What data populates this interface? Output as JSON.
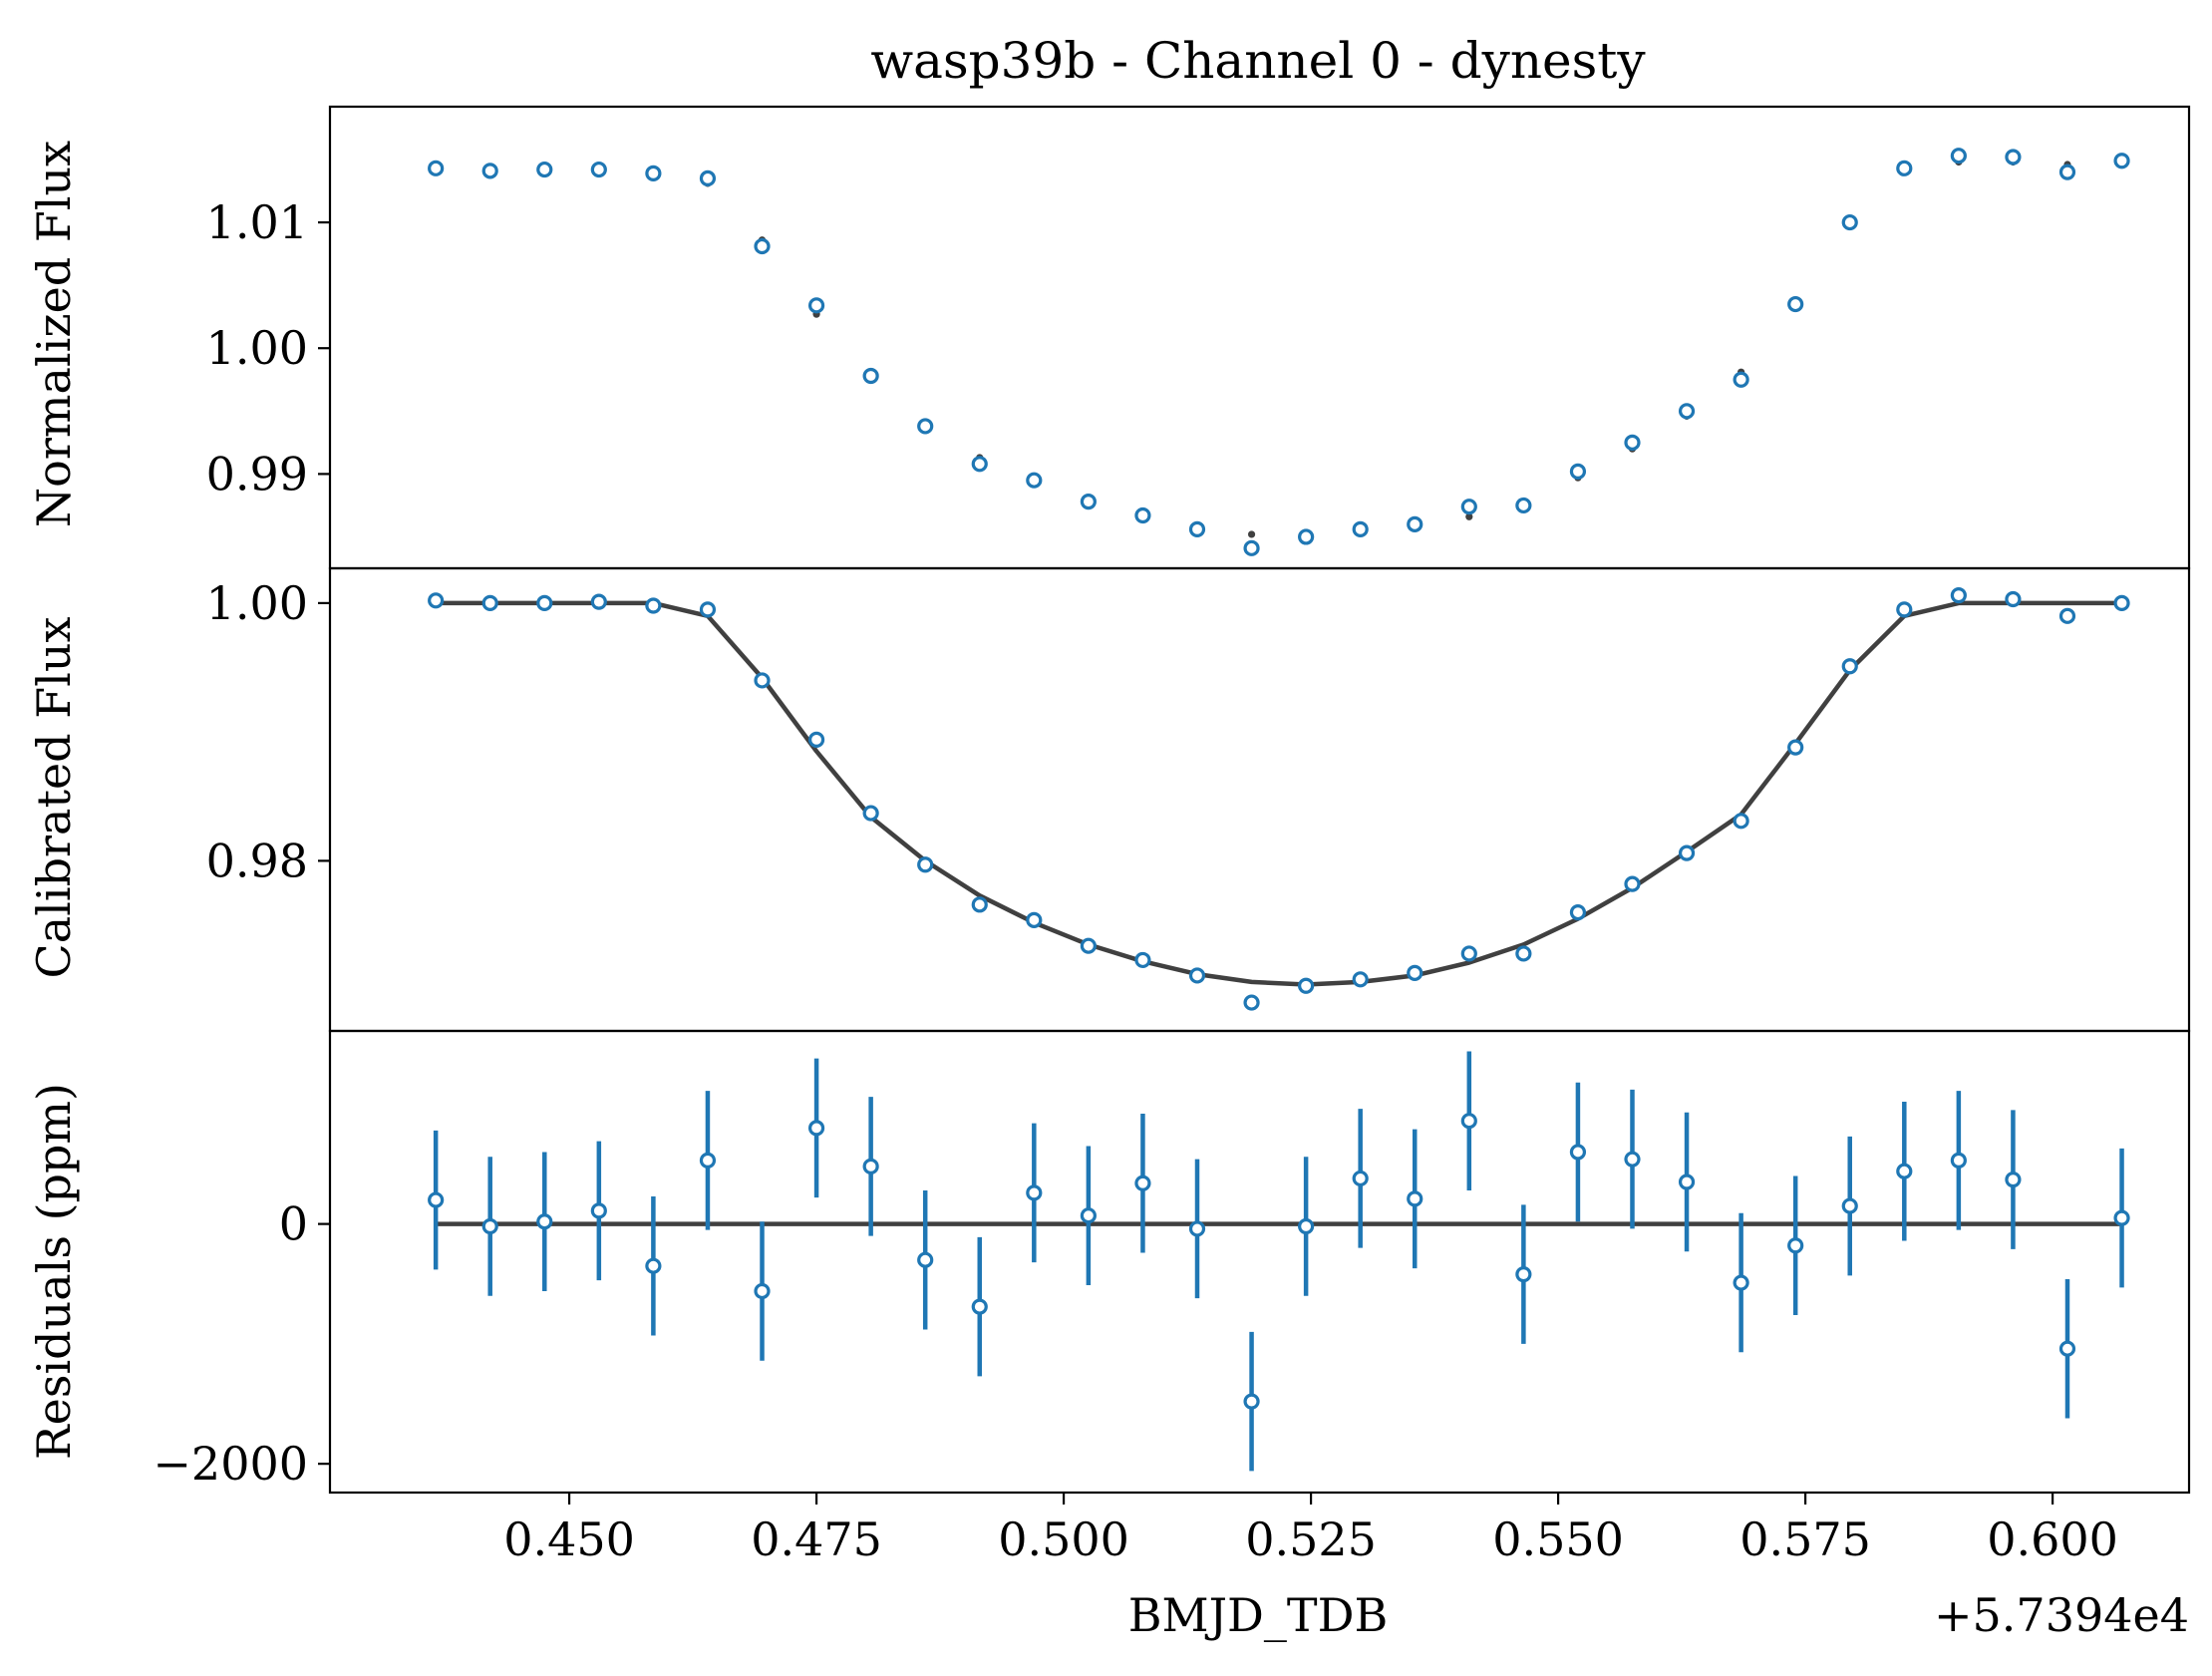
{
  "chart_data": {
    "title": "wasp39b - Channel 0 - dynesty",
    "xlabel": "BMJD_TDB",
    "x_offset_label": "+5.7394e4",
    "xlim": [
      0.4258,
      0.6138
    ],
    "x_ticks": [
      0.45,
      0.475,
      0.5,
      0.525,
      0.55,
      0.575,
      0.6
    ],
    "x_tick_labels": [
      "0.450",
      "0.475",
      "0.500",
      "0.525",
      "0.550",
      "0.575",
      "0.600"
    ],
    "colors": {
      "data": "#1f77b4",
      "model": "#404040"
    },
    "x": [
      0.4365,
      0.442,
      0.4475,
      0.453,
      0.4585,
      0.464,
      0.4695,
      0.475,
      0.4805,
      0.486,
      0.4915,
      0.497,
      0.5025,
      0.508,
      0.5135,
      0.519,
      0.5245,
      0.53,
      0.5355,
      0.541,
      0.5465,
      0.552,
      0.5575,
      0.563,
      0.5685,
      0.574,
      0.5795,
      0.585,
      0.5905,
      0.596,
      0.6015,
      0.607
    ],
    "panels": [
      {
        "type": "scatter",
        "ylabel": "Normalized Flux",
        "ylim": [
          0.9825,
          1.0192
        ],
        "y_ticks": [
          0.99,
          1.0,
          1.01
        ],
        "y_tick_labels": [
          "0.99",
          "1.00",
          "1.01"
        ],
        "series": [
          {
            "role": "data",
            "marker": "open-circle",
            "values": [
              1.0143,
              1.0141,
              1.0142,
              1.0142,
              1.0139,
              1.0135,
              1.0081,
              1.0034,
              0.9978,
              0.9938,
              0.9908,
              0.9895,
              0.9878,
              0.9867,
              0.9856,
              0.9841,
              0.985,
              0.9856,
              0.986,
              0.9874,
              0.9875,
              0.9902,
              0.9925,
              0.995,
              0.9975,
              1.0035,
              1.01,
              1.0143,
              1.0153,
              1.0152,
              1.014,
              1.0149
            ]
          },
          {
            "role": "model",
            "marker": "dot",
            "values": [
              1.0142,
              1.0141,
              1.0141,
              1.0142,
              1.014,
              1.0131,
              1.0086,
              1.0027,
              0.9975,
              0.9938,
              0.9913,
              0.9893,
              0.9876,
              0.9866,
              0.9857,
              0.9852,
              0.9852,
              0.9854,
              0.9858,
              0.9866,
              0.9877,
              0.9897,
              0.992,
              0.9946,
              0.9981,
              1.0033,
              1.0098,
              1.014,
              1.0148,
              1.0148,
              1.0146,
              1.0148
            ]
          }
        ]
      },
      {
        "type": "line",
        "ylabel": "Calibrated Flux",
        "ylim": [
          0.9668,
          1.0027
        ],
        "y_ticks": [
          0.98,
          1.0
        ],
        "y_tick_labels": [
          "0.98",
          "1.00"
        ],
        "series": [
          {
            "role": "data",
            "marker": "open-circle",
            "values": [
              1.0002,
              1.0,
              1.0,
              1.0001,
              0.9998,
              0.9995,
              0.994,
              0.9894,
              0.9837,
              0.9797,
              0.9766,
              0.9754,
              0.9734,
              0.9723,
              0.9711,
              0.969,
              0.9703,
              0.9708,
              0.9713,
              0.9728,
              0.9728,
              0.976,
              0.9782,
              0.9806,
              0.9831,
              0.9888,
              0.9951,
              0.9995,
              1.0006,
              1.0003,
              0.999,
              1.0
            ]
          },
          {
            "role": "model",
            "marker": "line",
            "values": [
              1.0,
              1.0,
              1.0,
              1.0,
              1.0,
              0.999,
              0.9942,
              0.9885,
              0.9834,
              0.98,
              0.9773,
              0.9752,
              0.9735,
              0.9722,
              0.9712,
              0.9706,
              0.9704,
              0.9706,
              0.9711,
              0.9721,
              0.9735,
              0.9755,
              0.9779,
              0.9807,
              0.9836,
              0.9891,
              0.9948,
              0.999,
              1.0,
              1.0,
              1.0,
              1.0
            ]
          }
        ]
      },
      {
        "type": "scatter",
        "ylabel": "Residuals (ppm)",
        "ylim": [
          -2240,
          1610
        ],
        "y_ticks": [
          -2000,
          0
        ],
        "y_tick_labels": [
          "−2000",
          "0"
        ],
        "zero_line": true,
        "series": [
          {
            "role": "data",
            "marker": "open-circle-errorbar",
            "values": [
              200,
              -20,
              20,
              110,
              -350,
              530,
              -560,
              800,
              480,
              -300,
              -690,
              260,
              70,
              340,
              -40,
              -1480,
              -20,
              380,
              210,
              860,
              -420,
              600,
              540,
              350,
              -490,
              -180,
              150,
              440,
              530,
              370,
              -1040,
              50
            ],
            "errors": [
              580,
              580,
              580,
              580,
              580,
              580,
              580,
              580,
              580,
              580,
              580,
              580,
              580,
              580,
              580,
              580,
              580,
              580,
              580,
              580,
              580,
              580,
              580,
              580,
              580,
              580,
              580,
              580,
              580,
              580,
              580,
              580
            ]
          },
          {
            "role": "model",
            "marker": "line",
            "values": [
              0,
              0
            ]
          }
        ]
      }
    ]
  }
}
